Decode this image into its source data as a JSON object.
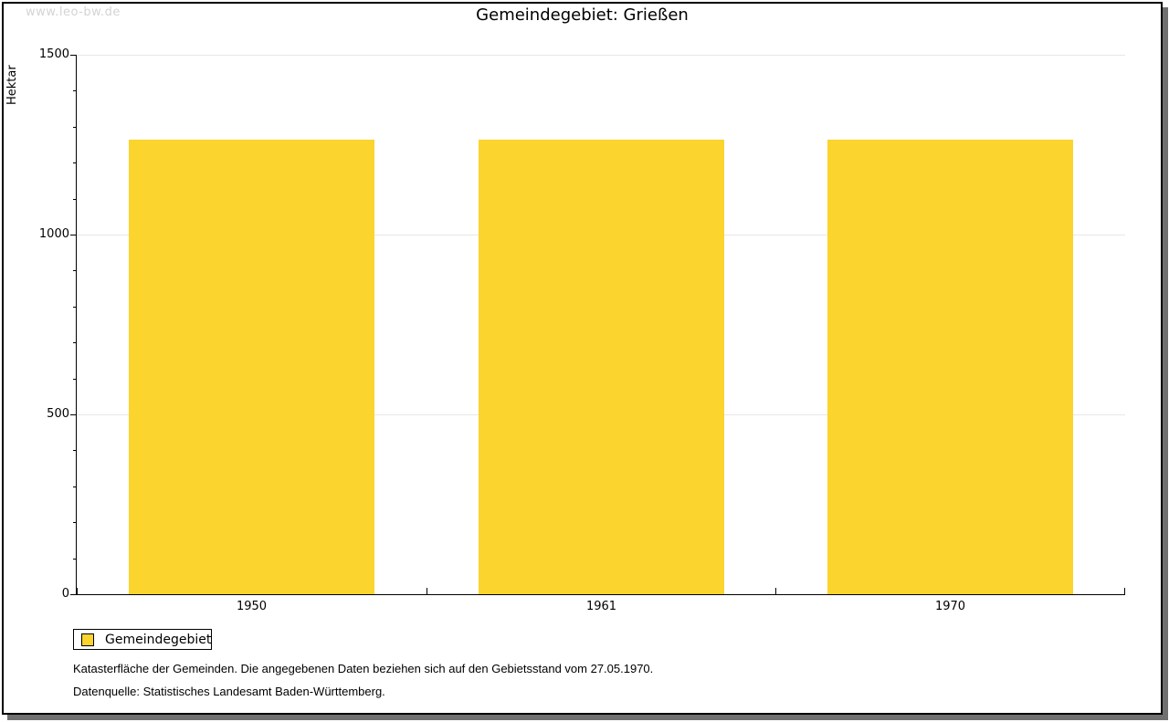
{
  "watermark": "www.leo-bw.de",
  "title": "Gemeindegebiet: Grießen",
  "chart_data": {
    "type": "bar",
    "title": "Gemeindegebiet: Grießen",
    "categories": [
      "1950",
      "1961",
      "1970"
    ],
    "series": [
      {
        "name": "Gemeindegebiet",
        "values": [
          1265,
          1265,
          1265
        ]
      }
    ],
    "xlabel": "",
    "ylabel": "Hektar",
    "ylim": [
      0,
      1500
    ],
    "y_major_ticks": [
      0,
      500,
      1000,
      1500
    ],
    "y_minor_step": 100,
    "grid": "horizontal-major",
    "legend_position": "bottom-left",
    "bar_color": "#FBD42D",
    "grid_color": "#e8e8e8"
  },
  "legend": {
    "items": [
      {
        "label": "Gemeindegebiet",
        "color": "#FBD42D"
      }
    ]
  },
  "footer": {
    "line1": "Katasterfläche der Gemeinden. Die angegebenen Daten beziehen sich auf den Gebietsstand vom 27.05.1970.",
    "line2": "Datenquelle: Statistisches Landesamt Baden-Württemberg."
  },
  "colors": {
    "frame_border": "#000000",
    "frame_shadow": "#707070",
    "axis": "#000000",
    "watermark_text": "#d4d4d4",
    "background": "#ffffff"
  }
}
